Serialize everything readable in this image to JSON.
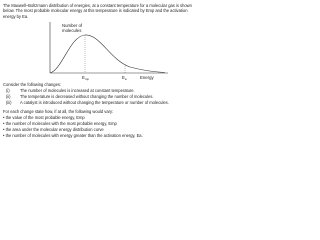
{
  "intro": "The Maxwell–Boltzmann distribution of energies, at a constant temperature for a molecular gas is shown below. The most probable molecular energy at this temperature is indicated by Emp and the activation energy by Ea.",
  "chart": {
    "y_label": "Number of molecules",
    "x_label": "Energy",
    "markers": [
      {
        "symbol": "E",
        "subscript": "mp"
      },
      {
        "symbol": "E",
        "subscript": "a"
      }
    ]
  },
  "prompt": "Consider the following changes:",
  "changes": [
    {
      "label": "(i)",
      "text": "The number of molecules is increased at constant temperature."
    },
    {
      "label": "(ii)",
      "text": "The temperature is decreased without changing the number of molecules."
    },
    {
      "label": "(iii)",
      "text": "A catalyst is introduced without changing the temperature or number of molecules."
    }
  ],
  "question": "For each change state how, if at all, the following would vary:",
  "items": [
    "the value of the most probable energy, Emp",
    "the number of molecules with the most probable energy, Emp",
    "the area under the molecular energy distribution curve",
    "the number of molecules with energy greater than the activation energy, Ea."
  ]
}
